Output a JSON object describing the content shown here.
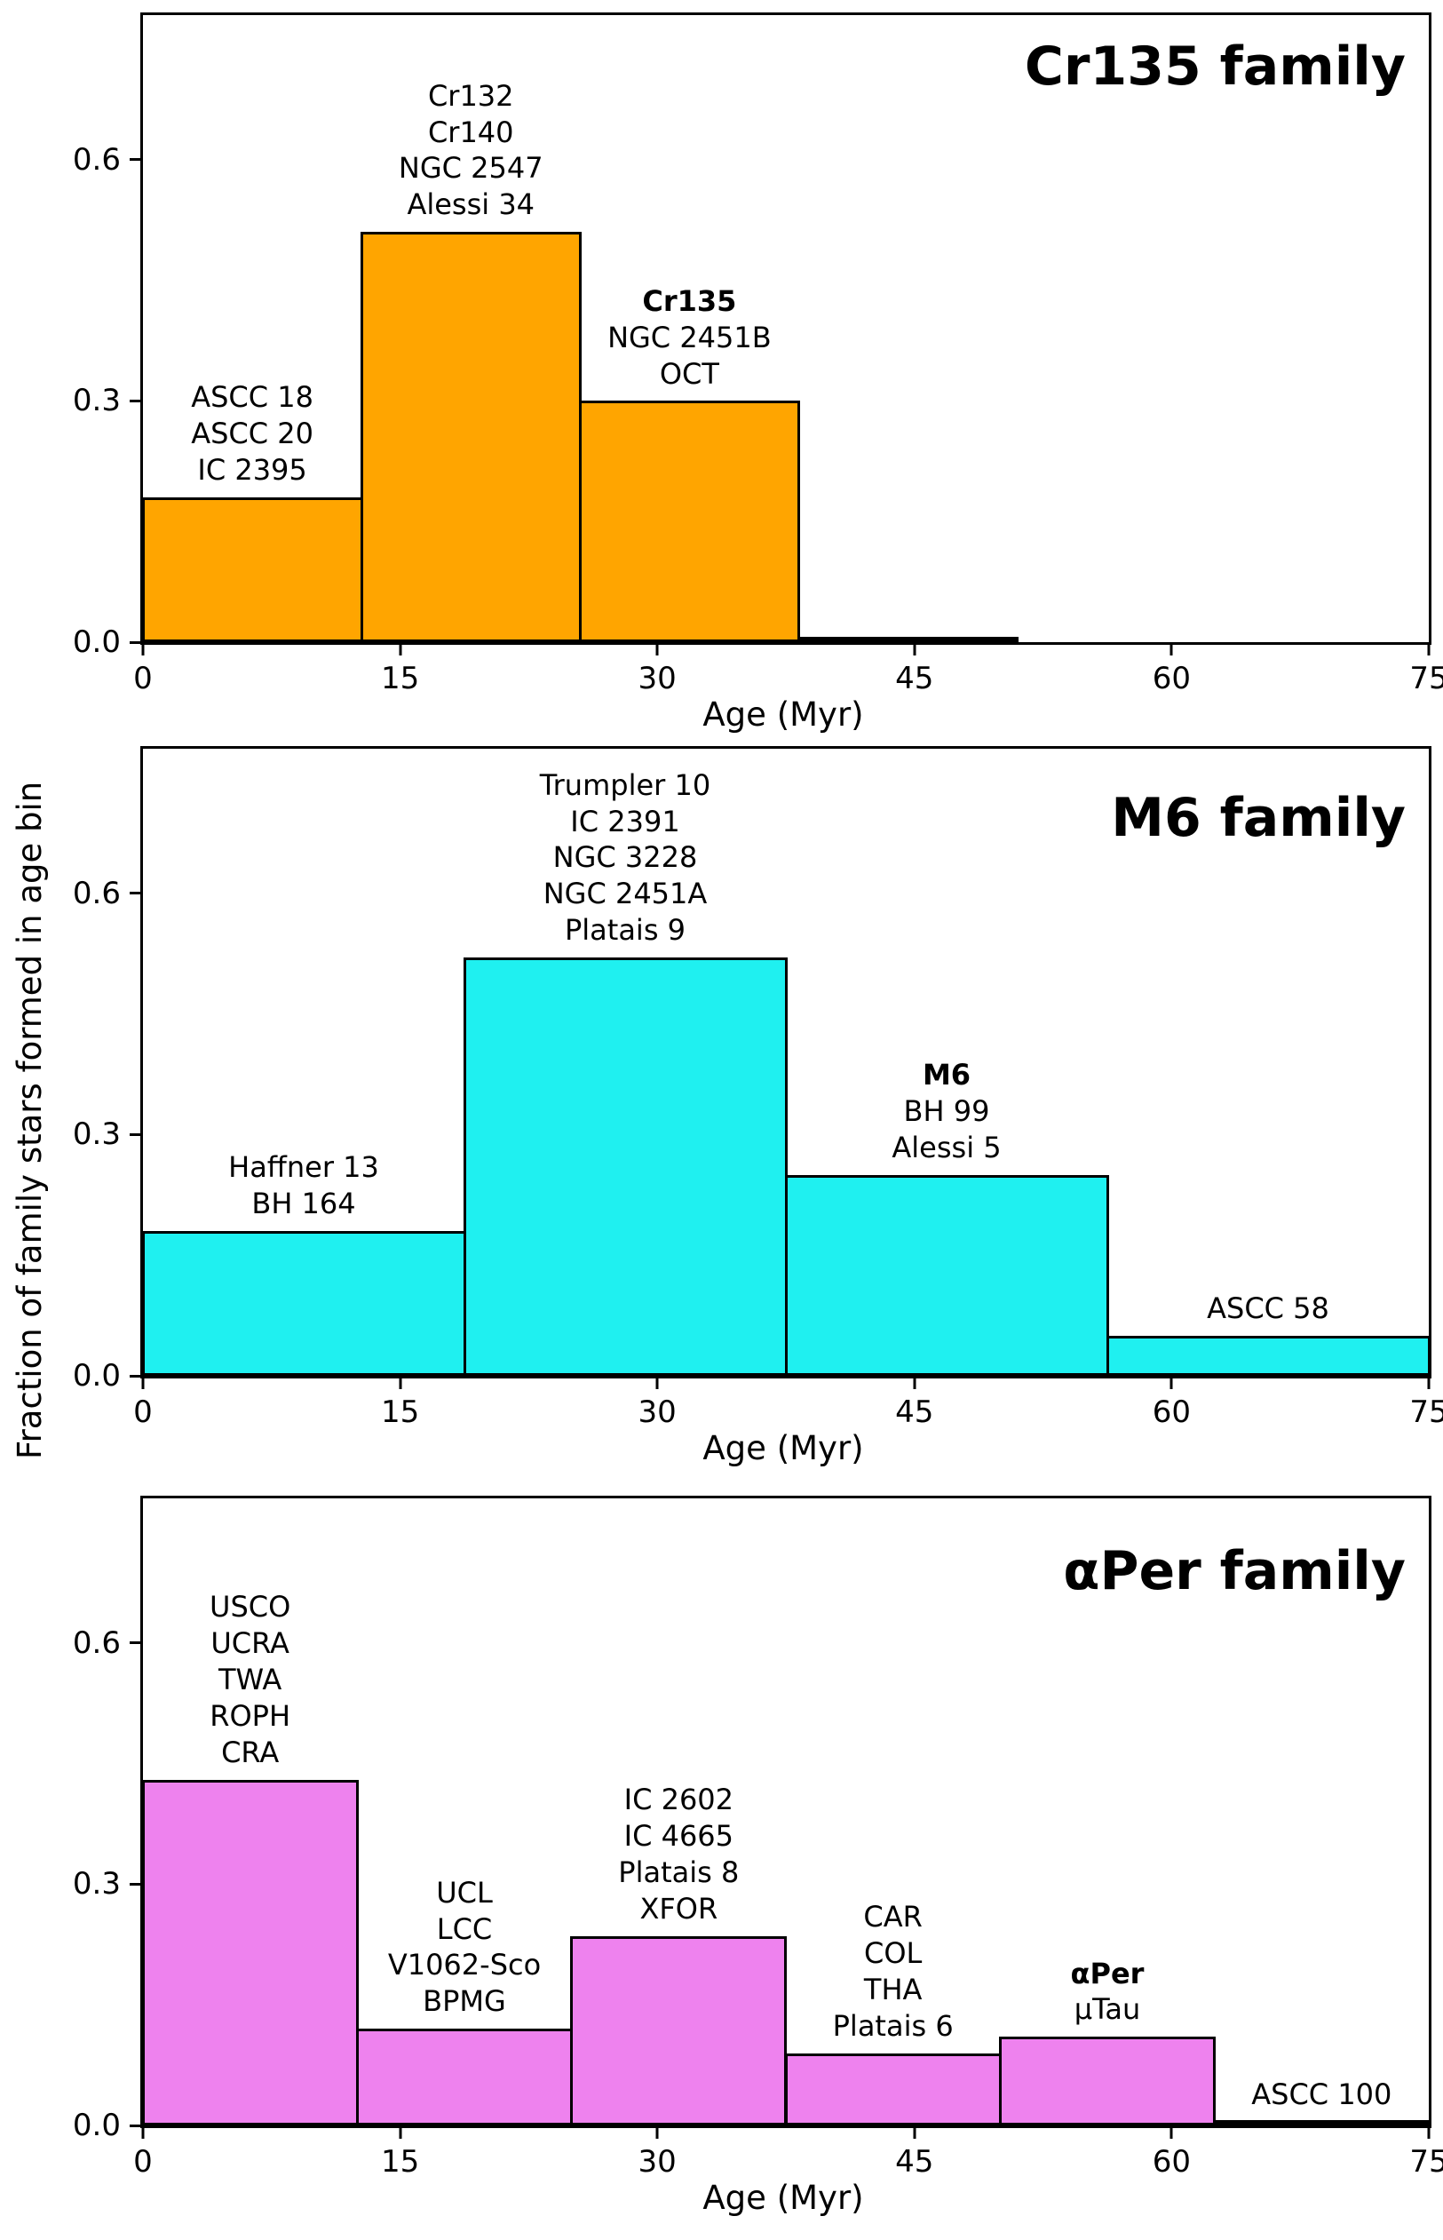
{
  "figure": {
    "ylabel": "Fraction of family stars formed in age bin"
  },
  "chart_data": [
    {
      "type": "bar",
      "title": "Cr135 family",
      "bar_color": "#FFA500",
      "edge_color": "#000000",
      "xlabel": "Age (Myr)",
      "xlim": [
        0,
        75
      ],
      "ylim": [
        0,
        0.78
      ],
      "xticks": [
        0,
        15,
        30,
        45,
        60,
        75
      ],
      "yticks": [
        {
          "value": 0.0,
          "label": "0.0"
        },
        {
          "value": 0.3,
          "label": "0.3"
        },
        {
          "value": 0.6,
          "label": "0.6"
        }
      ],
      "grid": false,
      "bins": [
        {
          "x0": 0,
          "x1": 12.75,
          "value": 0.18,
          "label": [
            {
              "text": "ASCC 18"
            },
            {
              "text": "ASCC 20"
            },
            {
              "text": "IC 2395"
            }
          ]
        },
        {
          "x0": 12.75,
          "x1": 25.5,
          "value": 0.51,
          "label": [
            {
              "text": "Cr132"
            },
            {
              "text": "Cr140"
            },
            {
              "text": "NGC 2547"
            },
            {
              "text": "Alessi 34"
            }
          ]
        },
        {
          "x0": 25.5,
          "x1": 38.25,
          "value": 0.3,
          "label": [
            {
              "text": "Cr135",
              "bold": true
            },
            {
              "text": "NGC 2451B"
            },
            {
              "text": "OCT"
            }
          ]
        },
        {
          "x0": 38.25,
          "x1": 51,
          "value": 0.005,
          "label": []
        }
      ]
    },
    {
      "type": "bar",
      "title": "M6 family",
      "bar_color": "#1FF0F0",
      "edge_color": "#000000",
      "xlabel": "Age (Myr)",
      "xlim": [
        0,
        75
      ],
      "ylim": [
        0,
        0.78
      ],
      "xticks": [
        0,
        15,
        30,
        45,
        60,
        75
      ],
      "yticks": [
        {
          "value": 0.0,
          "label": "0.0"
        },
        {
          "value": 0.3,
          "label": "0.3"
        },
        {
          "value": 0.6,
          "label": "0.6"
        }
      ],
      "grid": false,
      "bins": [
        {
          "x0": 0,
          "x1": 18.75,
          "value": 0.18,
          "label": [
            {
              "text": "Haffner 13"
            },
            {
              "text": "BH 164"
            }
          ]
        },
        {
          "x0": 18.75,
          "x1": 37.5,
          "value": 0.52,
          "label": [
            {
              "text": "Trumpler 10"
            },
            {
              "text": "IC 2391"
            },
            {
              "text": "NGC 3228"
            },
            {
              "text": "NGC 2451A"
            },
            {
              "text": "Platais 9"
            }
          ]
        },
        {
          "x0": 37.5,
          "x1": 56.25,
          "value": 0.25,
          "label": [
            {
              "text": "M6",
              "bold": true
            },
            {
              "text": "BH 99"
            },
            {
              "text": "Alessi 5"
            }
          ]
        },
        {
          "x0": 56.25,
          "x1": 75,
          "value": 0.05,
          "label": [
            {
              "text": "ASCC 58"
            }
          ]
        }
      ]
    },
    {
      "type": "bar",
      "title": "αPer family",
      "bar_color": "#EE82EE",
      "edge_color": "#000000",
      "xlabel": "Age (Myr)",
      "xlim": [
        0,
        75
      ],
      "ylim": [
        0,
        0.78
      ],
      "xticks": [
        0,
        15,
        30,
        45,
        60,
        75
      ],
      "yticks": [
        {
          "value": 0.0,
          "label": "0.0"
        },
        {
          "value": 0.3,
          "label": "0.3"
        },
        {
          "value": 0.6,
          "label": "0.6"
        }
      ],
      "grid": false,
      "bins": [
        {
          "x0": 0,
          "x1": 12.5,
          "value": 0.43,
          "label": [
            {
              "text": "USCO"
            },
            {
              "text": "UCRA"
            },
            {
              "text": "TWA"
            },
            {
              "text": "ROPH"
            },
            {
              "text": "CRA"
            }
          ]
        },
        {
          "x0": 12.5,
          "x1": 25,
          "value": 0.12,
          "label": [
            {
              "text": "UCL"
            },
            {
              "text": "LCC"
            },
            {
              "text": "V1062-Sco"
            },
            {
              "text": "BPMG"
            }
          ]
        },
        {
          "x0": 25,
          "x1": 37.5,
          "value": 0.235,
          "label": [
            {
              "text": "IC 2602"
            },
            {
              "text": "IC 4665"
            },
            {
              "text": "Platais 8"
            },
            {
              "text": "XFOR"
            }
          ]
        },
        {
          "x0": 37.5,
          "x1": 50,
          "value": 0.09,
          "label": [
            {
              "text": "CAR"
            },
            {
              "text": "COL"
            },
            {
              "text": "THA"
            },
            {
              "text": "Platais 6"
            }
          ]
        },
        {
          "x0": 50,
          "x1": 62.5,
          "value": 0.11,
          "label": [
            {
              "text": "αPer",
              "bold": true
            },
            {
              "text": "μTau"
            }
          ]
        },
        {
          "x0": 62.5,
          "x1": 75,
          "value": 0.005,
          "label": [
            {
              "text": "ASCC 100"
            }
          ]
        }
      ]
    }
  ]
}
